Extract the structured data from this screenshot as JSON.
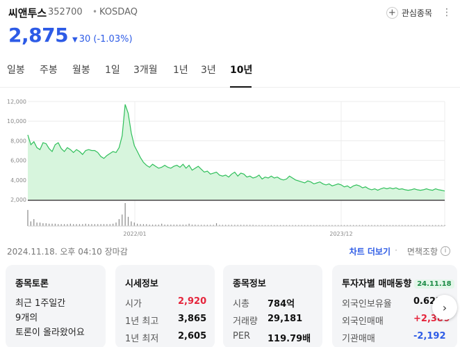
{
  "stock": {
    "name": "씨앤투스",
    "code": "352700",
    "market": "KOSDAQ",
    "watchlist_label": "관심종목",
    "price": "2,875",
    "change_amount": "30",
    "change_percent": "(-1.03%)",
    "direction": "down"
  },
  "tabs": [
    {
      "label": "일봉",
      "active": false
    },
    {
      "label": "주봉",
      "active": false
    },
    {
      "label": "월봉",
      "active": false
    },
    {
      "label": "1일",
      "active": false
    },
    {
      "label": "3개월",
      "active": false
    },
    {
      "label": "1년",
      "active": false
    },
    {
      "label": "3년",
      "active": false
    },
    {
      "label": "10년",
      "active": true
    }
  ],
  "chart_data": {
    "type": "area",
    "title": "",
    "xlabel": "",
    "ylabel": "",
    "ylim": [
      2000,
      12000
    ],
    "yticks": [
      "12,000",
      "10,000",
      "8,000",
      "6,000",
      "4,000",
      "2,000"
    ],
    "ytick_values": [
      12000,
      10000,
      8000,
      6000,
      4000,
      2000
    ],
    "xticks": [
      "2022/01",
      "2023/12"
    ],
    "grid": true,
    "colors": {
      "line": "#2fbf5a",
      "fill": "#d7f5dd",
      "volume": "#888888"
    },
    "series": [
      {
        "values": [
          8600,
          7600,
          7900,
          7300,
          7100,
          7800,
          7700,
          7200,
          6900,
          7600,
          7800,
          7200,
          6900,
          7300,
          7100,
          6800,
          7100,
          6900,
          6600,
          7000,
          7100,
          7000,
          7000,
          6800,
          6400,
          6200,
          6500,
          6700,
          6900,
          6800,
          7300,
          8500,
          11700,
          10800,
          8800,
          7500,
          6900,
          6300,
          5800,
          5500,
          5300,
          5600,
          5400,
          5200,
          5300,
          5500,
          5300,
          5200,
          5400,
          5500,
          5300,
          5600,
          5200,
          5500,
          5000,
          5200,
          5400,
          5100,
          4800,
          4900,
          4600,
          4700,
          4800,
          4500,
          4400,
          4500,
          4300,
          4600,
          4800,
          4400,
          4700,
          4600,
          4300,
          4400,
          4200,
          4300,
          4500,
          4100,
          4300,
          4200,
          4400,
          4200,
          4300,
          4100,
          4000,
          4100,
          4400,
          4200,
          4000,
          3900,
          3800,
          3700,
          3900,
          3800,
          3600,
          3700,
          3800,
          3600,
          3500,
          3600,
          3400,
          3500,
          3600,
          3500,
          3300,
          3400,
          3200,
          3400,
          3500,
          3400,
          3200,
          3300,
          3100,
          3000,
          3100,
          2950,
          3100,
          3200,
          3100,
          3200,
          3100,
          3200,
          3050,
          3100,
          3000,
          2950,
          3000,
          3100,
          3000,
          2950,
          3000,
          3100,
          3000,
          2950,
          3100,
          3000,
          2950,
          2875
        ],
        "volume": [
          70,
          20,
          30,
          15,
          15,
          12,
          12,
          10,
          10,
          10,
          8,
          8,
          8,
          8,
          10,
          8,
          8,
          8,
          8,
          10,
          8,
          8,
          8,
          8,
          8,
          8,
          8,
          8,
          10,
          15,
          30,
          50,
          100,
          40,
          20,
          15,
          10,
          8,
          8,
          8,
          6,
          6,
          6,
          6,
          10,
          6,
          6,
          6,
          6,
          6,
          6,
          6,
          6,
          10,
          6,
          6,
          5,
          5,
          5,
          5,
          5,
          5,
          12,
          5,
          5,
          5,
          5,
          5,
          5,
          5,
          5,
          5,
          5,
          5,
          5,
          4,
          4,
          4,
          4,
          4,
          4,
          4,
          4,
          4,
          4,
          4,
          4,
          4,
          4,
          4,
          4,
          4,
          4,
          4,
          4,
          4,
          4,
          4,
          4,
          4,
          4,
          4,
          4,
          4,
          4,
          4,
          4,
          4,
          4,
          4,
          4,
          4,
          4,
          4,
          4,
          4,
          4,
          4,
          4,
          4,
          4,
          4,
          4,
          4,
          4,
          4,
          4,
          4,
          4,
          4,
          4,
          4,
          4,
          4,
          4,
          4,
          4,
          4
        ]
      }
    ]
  },
  "footer": {
    "timestamp": "2024.11.18. 오후 04:10 장마감",
    "more_chart": "차트 더보기",
    "dot": "·",
    "disclaimer": "면책조항",
    "info_icon": "i"
  },
  "cards": {
    "discussion": {
      "title": "종목토론",
      "line1": "최근 1주일간",
      "line2": "9개의",
      "line3": "토론이 올라왔어요"
    },
    "market_info": {
      "title": "시세정보",
      "rows": [
        {
          "label": "시가",
          "value": "2,920",
          "color": "red"
        },
        {
          "label": "1년 최고",
          "value": "3,865",
          "color": ""
        },
        {
          "label": "1년 최저",
          "value": "2,605",
          "color": ""
        }
      ]
    },
    "stock_info": {
      "title": "종목정보",
      "rows": [
        {
          "label": "시총",
          "value": "784억"
        },
        {
          "label": "거래량",
          "value": "29,181"
        },
        {
          "label": "PER",
          "value": "119.79배"
        }
      ]
    },
    "investor": {
      "title": "투자자별 매매동향",
      "date": "24.11.18",
      "rows": [
        {
          "label": "외국인보유율",
          "value": "0.62%",
          "color": ""
        },
        {
          "label": "외국인매매",
          "value": "+2,386",
          "color": "red"
        },
        {
          "label": "기관매매",
          "value": "-2,192",
          "color": "blue"
        }
      ]
    }
  }
}
